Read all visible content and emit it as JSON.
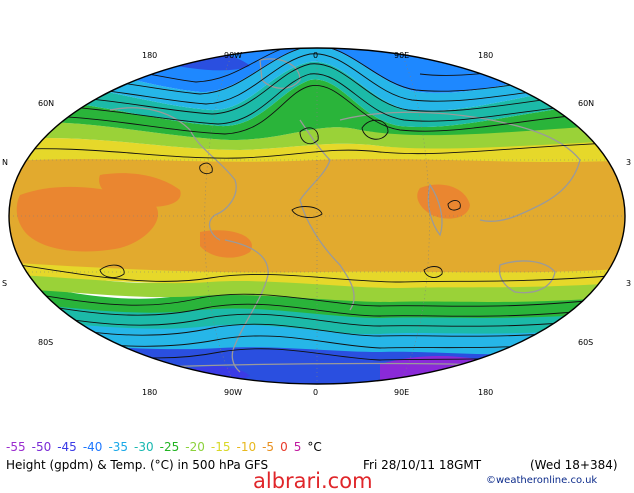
{
  "map": {
    "lon_labels_top": [
      "180",
      "90W",
      "0",
      "90E",
      "180"
    ],
    "lon_labels_bottom": [
      "180",
      "90W",
      "0",
      "90E",
      "180"
    ],
    "lat_labels_left": [
      "60N",
      "N",
      "S",
      "80S"
    ],
    "lat_labels_right": [
      "60N",
      "3",
      "3",
      "60S"
    ]
  },
  "scale": {
    "items": [
      {
        "label": "-55",
        "color": "#9b2ccf"
      },
      {
        "label": "-50",
        "color": "#7a2bd6"
      },
      {
        "label": "-45",
        "color": "#3b3be6"
      },
      {
        "label": "-40",
        "color": "#1e78ff"
      },
      {
        "label": "-35",
        "color": "#1aa8e8"
      },
      {
        "label": "-30",
        "color": "#18b8b0"
      },
      {
        "label": "-25",
        "color": "#22b422"
      },
      {
        "label": "-20",
        "color": "#8cd23c"
      },
      {
        "label": "-15",
        "color": "#d8d826"
      },
      {
        "label": "-10",
        "color": "#e8b81e"
      },
      {
        "label": "-5",
        "color": "#e89020"
      },
      {
        "label": "0",
        "color": "#e83a2a"
      },
      {
        "label": "5",
        "color": "#c21aa0"
      }
    ],
    "unit": "°C"
  },
  "caption": {
    "left": "Height (gpdm) & Temp. (°C) in 500 hPa GFS",
    "date": "Fri 28/10/11 18GMT",
    "valid": "(Wed 18+384)"
  },
  "watermark": "albrari.com",
  "credit": "©weatheronline.co.uk",
  "colors": {
    "polar_violet": "#8a2ad8",
    "deep_blue": "#1f3fd8",
    "blue": "#1e78ff",
    "cyan": "#22b4e4",
    "teal": "#1cb8a8",
    "green": "#2ab43a",
    "lime": "#9ad238",
    "yellow": "#e6d82a",
    "amber": "#e2aa2e",
    "orange": "#e88a30",
    "coast": "#9a9a9a",
    "contour": "#111111"
  }
}
